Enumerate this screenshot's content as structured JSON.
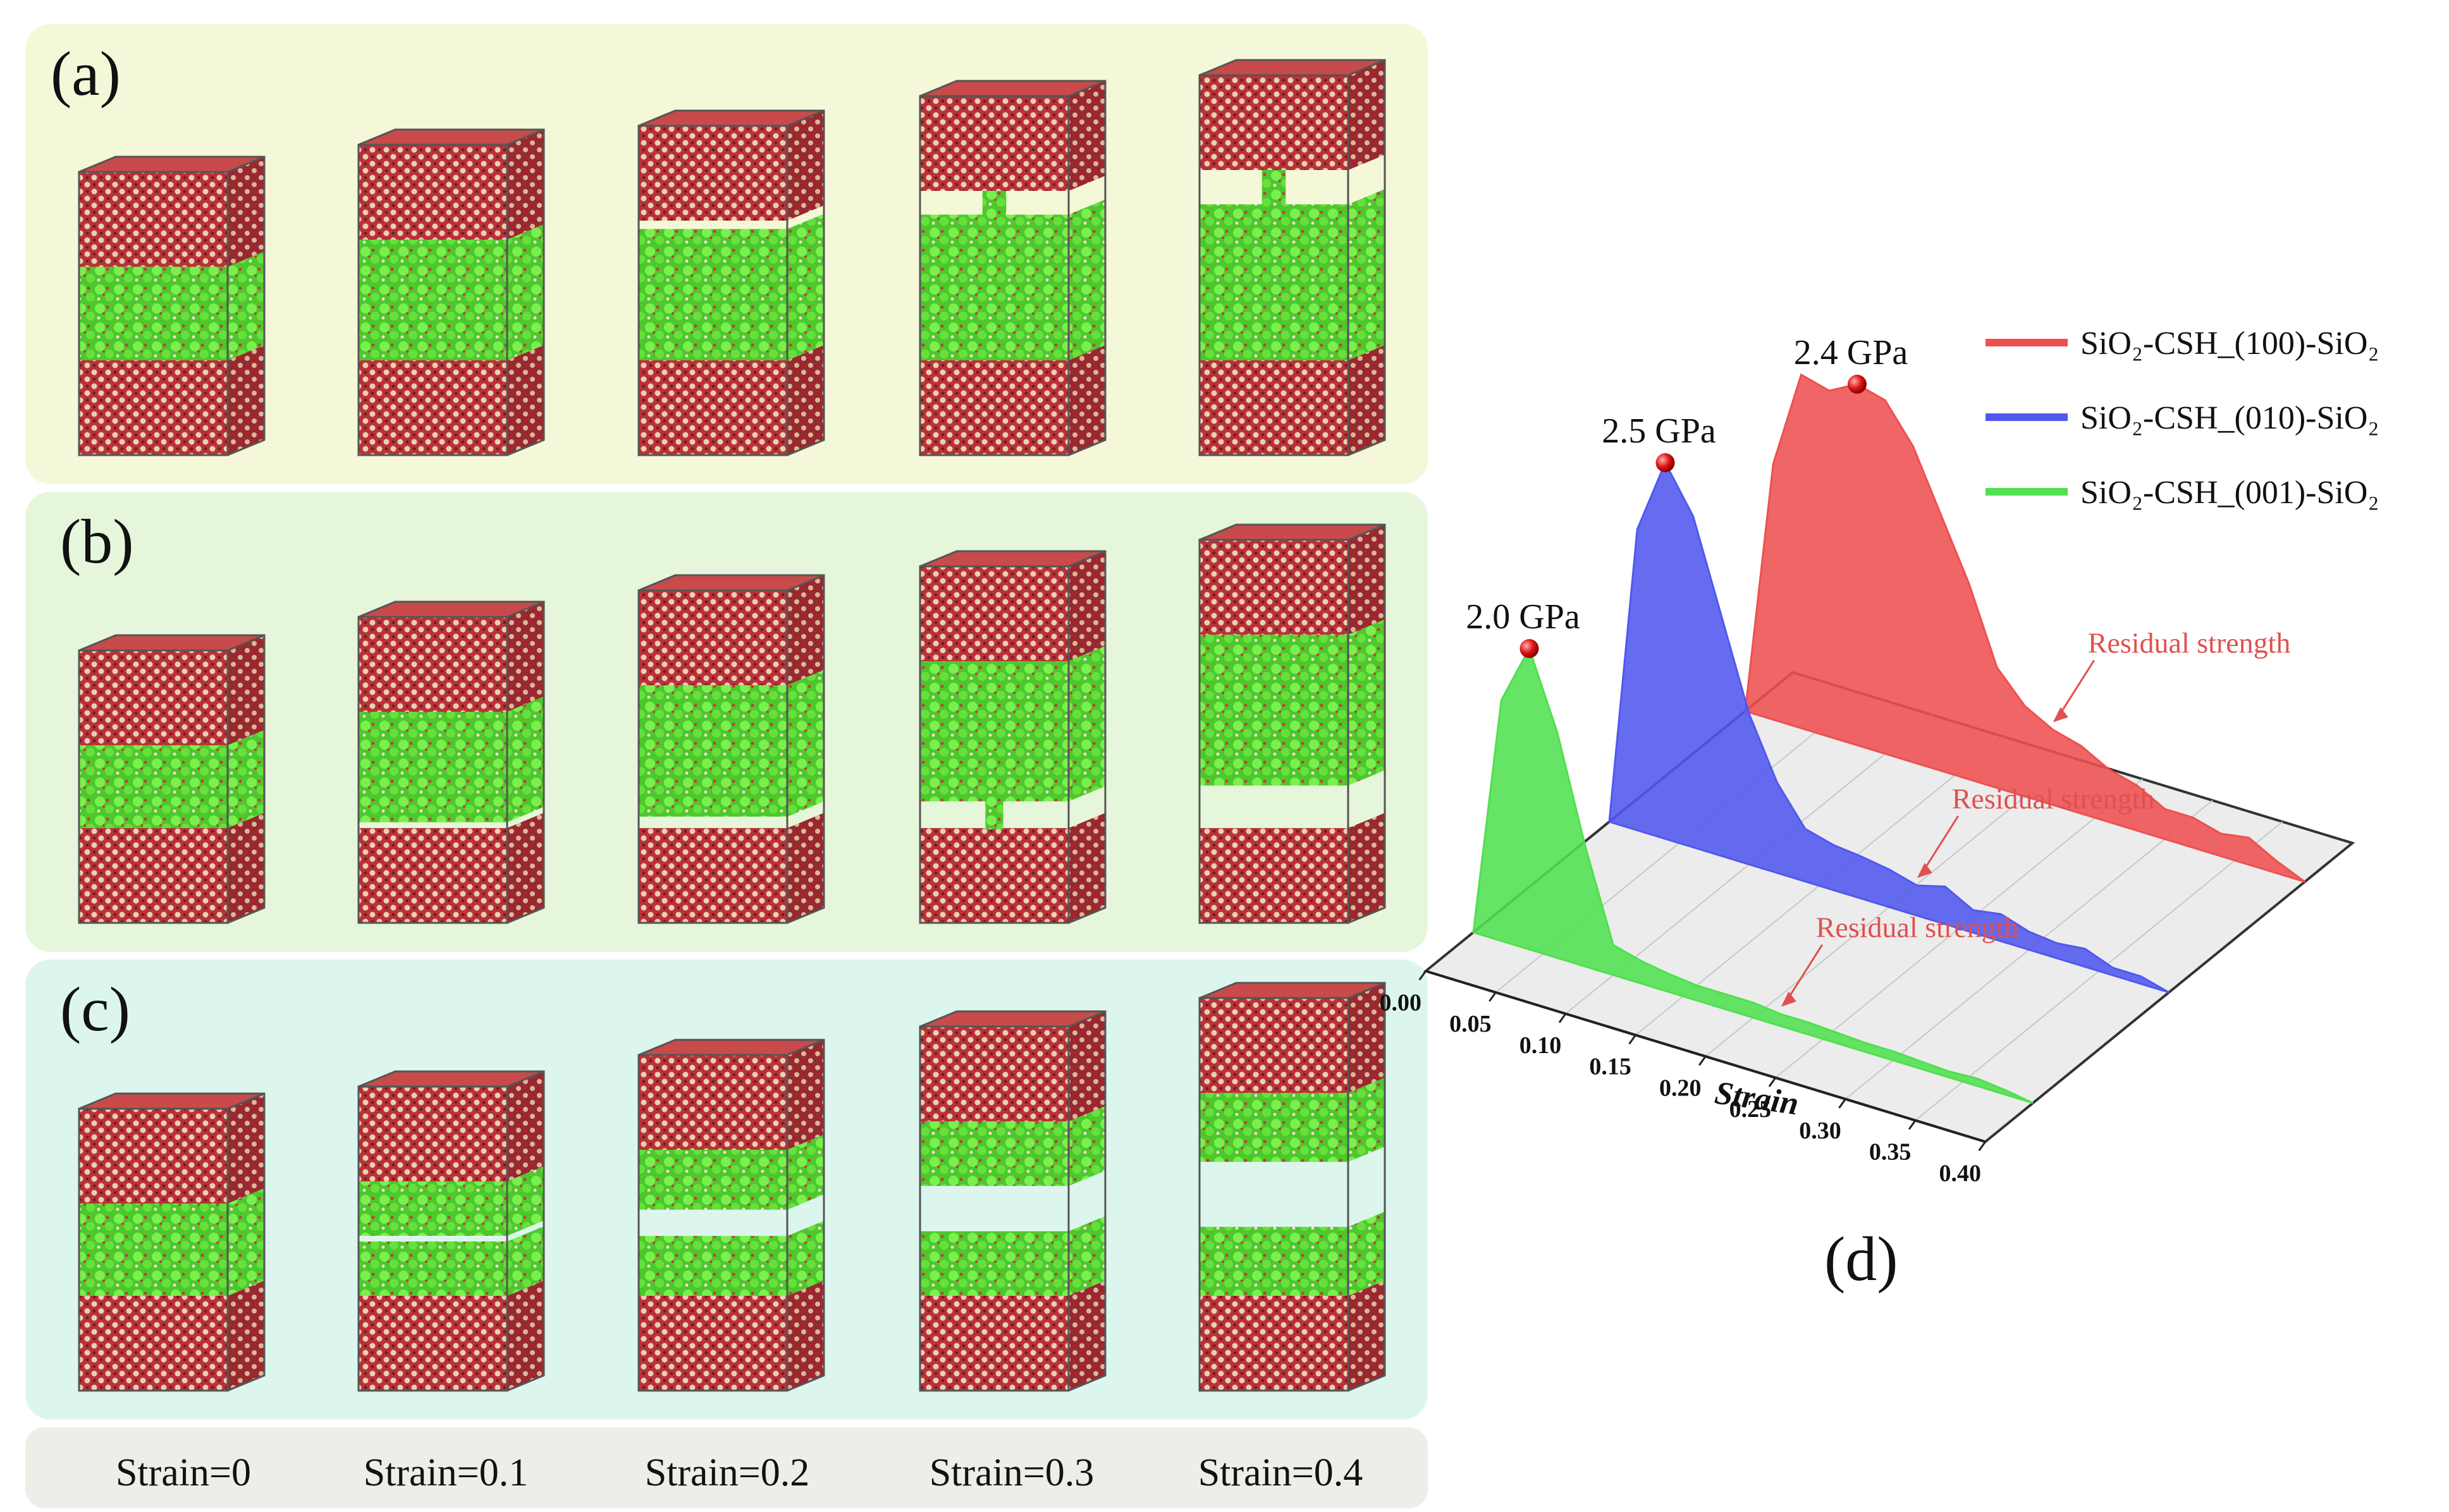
{
  "figure": {
    "panel_labels": {
      "a": "(a)",
      "b": "(b)",
      "c": "(c)",
      "d": "(d)"
    },
    "strain_labels": [
      "Strain=0",
      "Strain=0.1",
      "Strain=0.2",
      "Strain=0.3",
      "Strain=0.4"
    ],
    "colors": {
      "row_a_bg": "#f4f8d8",
      "row_b_bg": "#e6f6da",
      "row_c_bg": "#dcf6ee",
      "strain_bar_bg": "#eeeee8",
      "atom_red": "#b8323a",
      "atom_tan": "#e8c8a8",
      "csh_green": "#5fe23a",
      "frame": "#555555"
    }
  },
  "chart_data": {
    "type": "area",
    "title": "",
    "xlabel": "Strain",
    "ylabel": "",
    "xlim": [
      0,
      0.4
    ],
    "x_ticks": [
      "0.00",
      "0.05",
      "0.10",
      "0.15",
      "0.20",
      "0.25",
      "0.30",
      "0.35",
      "0.40"
    ],
    "series": [
      {
        "name": "SiO₂-CSH_(100)-SiO₂",
        "color": "#ee5050",
        "peak_label": "2.4 GPa",
        "residual_label": "Residual strength",
        "x": [
          0,
          0.02,
          0.04,
          0.06,
          0.08,
          0.1,
          0.12,
          0.14,
          0.16,
          0.18,
          0.2,
          0.22,
          0.24,
          0.26,
          0.28,
          0.3,
          0.32,
          0.34,
          0.36,
          0.38,
          0.4
        ],
        "y": [
          0,
          1.7,
          2.35,
          2.3,
          2.4,
          2.35,
          2.1,
          1.7,
          1.3,
          0.8,
          0.6,
          0.5,
          0.45,
          0.35,
          0.3,
          0.2,
          0.2,
          0.15,
          0.18,
          0.08,
          0
        ]
      },
      {
        "name": "SiO₂-CSH_(010)-SiO₂",
        "color": "#5058ee",
        "peak_label": "2.5 GPa",
        "residual_label": "Residual strength",
        "x": [
          0,
          0.02,
          0.04,
          0.06,
          0.08,
          0.1,
          0.12,
          0.14,
          0.16,
          0.18,
          0.2,
          0.22,
          0.24,
          0.26,
          0.28,
          0.3,
          0.32,
          0.34,
          0.36,
          0.38,
          0.4
        ],
        "y": [
          0,
          2.0,
          2.5,
          2.2,
          1.6,
          1.0,
          0.6,
          0.35,
          0.3,
          0.28,
          0.25,
          0.2,
          0.25,
          0.15,
          0.18,
          0.12,
          0.1,
          0.12,
          0.05,
          0.05,
          0
        ]
      },
      {
        "name": "SiO₂-CSH_(001)-SiO₂",
        "color": "#50e050",
        "peak_label": "2.0 GPa",
        "residual_label": "Residual strength",
        "x": [
          0,
          0.02,
          0.04,
          0.06,
          0.08,
          0.1,
          0.12,
          0.14,
          0.16,
          0.18,
          0.2,
          0.22,
          0.24,
          0.26,
          0.28,
          0.3,
          0.32,
          0.34,
          0.36,
          0.38,
          0.4
        ],
        "y": [
          0,
          1.6,
          2.0,
          1.5,
          0.8,
          0.2,
          0.15,
          0.12,
          0.1,
          0.1,
          0.1,
          0.08,
          0.08,
          0.07,
          0.06,
          0.06,
          0.05,
          0.04,
          0.05,
          0.03,
          0
        ]
      }
    ]
  }
}
